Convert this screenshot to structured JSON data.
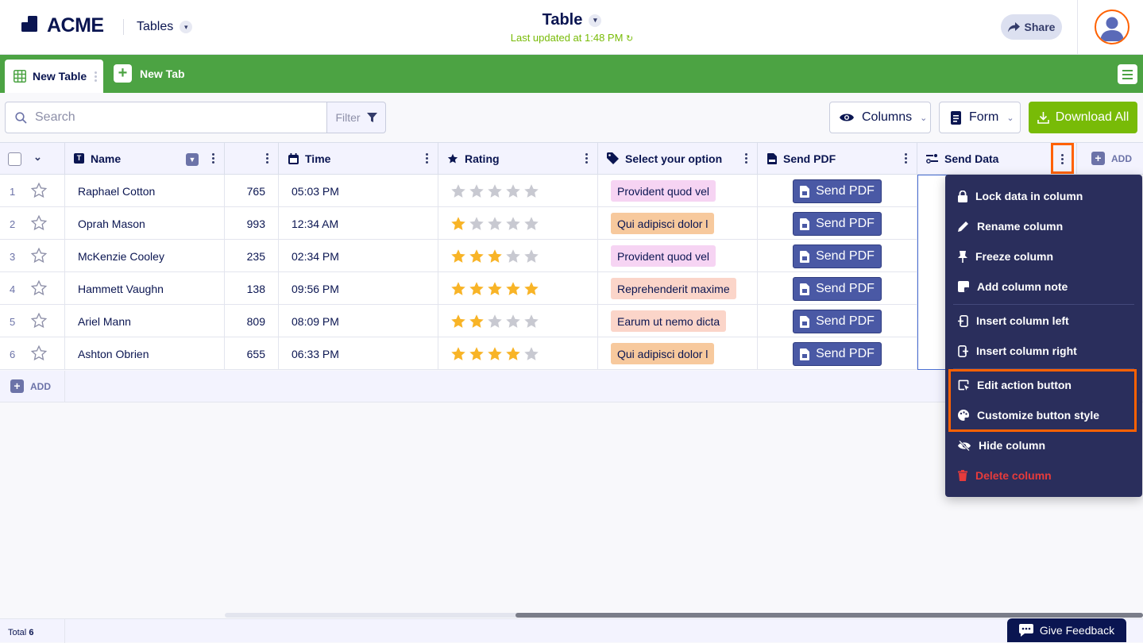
{
  "header": {
    "logo_text": "ACME",
    "app_switch_label": "Tables",
    "title": "Table",
    "last_updated": "Last updated at 1:48 PM",
    "share_label": "Share"
  },
  "tabs": {
    "active_label": "New Table",
    "new_tab_label": "New Tab"
  },
  "toolbar": {
    "search_placeholder": "Search",
    "filter_label": "Filter",
    "columns_label": "Columns",
    "form_label": "Form",
    "download_label": "Download All"
  },
  "columns": [
    {
      "label": "Name",
      "icon": "text-icon"
    },
    {
      "label": "",
      "icon": ""
    },
    {
      "label": "Time",
      "icon": "calendar-icon"
    },
    {
      "label": "Rating",
      "icon": "star-icon"
    },
    {
      "label": "Select your option",
      "icon": "tag-icon"
    },
    {
      "label": "Send PDF",
      "icon": "pdf-icon"
    },
    {
      "label": "Send Data",
      "icon": "action-icon"
    }
  ],
  "add_column_label": "ADD",
  "rows": [
    {
      "num": "1",
      "name": "Raphael Cotton",
      "number": "765",
      "time": "05:03 PM",
      "rating": 0,
      "option": "Provident quod vel",
      "button": "Send PDF"
    },
    {
      "num": "2",
      "name": "Oprah Mason",
      "number": "993",
      "time": "12:34 AM",
      "rating": 1,
      "option": "Qui adipisci dolor l",
      "button": "Send PDF"
    },
    {
      "num": "3",
      "name": "McKenzie Cooley",
      "number": "235",
      "time": "02:34 PM",
      "rating": 3,
      "option": "Provident quod vel",
      "button": "Send PDF"
    },
    {
      "num": "4",
      "name": "Hammett Vaughn",
      "number": "138",
      "time": "09:56 PM",
      "rating": 5,
      "option": "Reprehenderit maxime",
      "button": "Send PDF"
    },
    {
      "num": "5",
      "name": "Ariel Mann",
      "number": "809",
      "time": "08:09 PM",
      "rating": 2,
      "option": "Earum ut nemo dicta",
      "button": "Send PDF"
    },
    {
      "num": "6",
      "name": "Ashton Obrien",
      "number": "655",
      "time": "06:33 PM",
      "rating": 4,
      "option": "Qui adipisci dolor l",
      "button": "Send PDF"
    }
  ],
  "option_colors": {
    "Provident quod vel": "#f6d4f3",
    "Qui adipisci dolor l": "#f7c99d",
    "Reprehenderit maxime": "#fbd5c9",
    "Earum ut nemo dicta": "#fbd5c9"
  },
  "add_row_label": "ADD",
  "column_menu": {
    "items": [
      {
        "label": "Lock data in column",
        "icon": "lock-icon"
      },
      {
        "label": "Rename column",
        "icon": "pencil-icon"
      },
      {
        "label": "Freeze column",
        "icon": "pin-icon"
      },
      {
        "label": "Add column note",
        "icon": "note-icon"
      },
      {
        "label": "Insert column left",
        "icon": "insert-left-icon"
      },
      {
        "label": "Insert column right",
        "icon": "insert-right-icon"
      },
      {
        "label": "Edit action button",
        "icon": "edit-action-icon"
      },
      {
        "label": "Customize button style",
        "icon": "palette-icon"
      },
      {
        "label": "Hide column",
        "icon": "eye-slash-icon"
      },
      {
        "label": "Delete column",
        "icon": "trash-icon"
      }
    ]
  },
  "footer": {
    "total_label": "Total",
    "total_count": "6",
    "feedback_label": "Give Feedback"
  },
  "colors": {
    "brand_navy": "#0a1551",
    "tab_green": "#4ca343",
    "download_green": "#78bb07",
    "button_blue": "#4a59a5",
    "menu_bg": "#2a2e5c",
    "highlight_orange": "#ff6100",
    "star_gold": "#f8b427",
    "danger_red": "#e63b3b"
  }
}
